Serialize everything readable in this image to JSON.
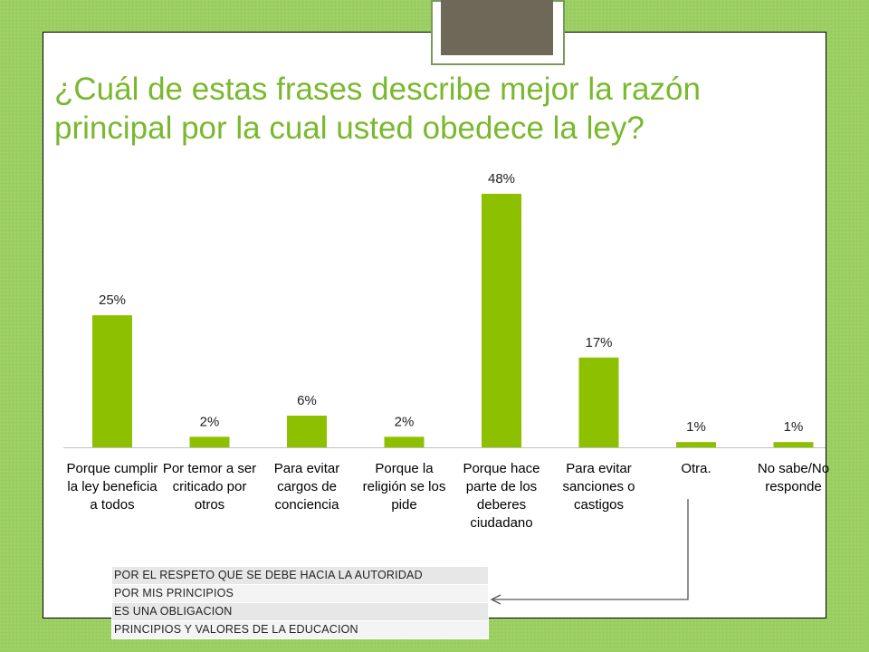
{
  "slide": {
    "title": "¿Cuál de estas frases describe mejor la razón principal por la cual usted obedece la ley?",
    "background_color": "#9ccf63",
    "title_color": "#7ab82e",
    "bar_color": "#8dc100"
  },
  "chart_data": {
    "type": "bar",
    "title": "",
    "xlabel": "",
    "ylabel": "",
    "categories": [
      "Porque cumplir la ley beneficia a todos",
      "Por temor a ser criticado por otros",
      "Para evitar cargos de conciencia",
      "Porque la religión se los pide",
      "Porque hace parte de los deberes ciudadano",
      "Para evitar sanciones o castigos",
      "Otra.",
      "No sabe/No responde"
    ],
    "values": [
      25,
      2,
      6,
      2,
      48,
      17,
      1,
      1
    ],
    "data_labels": [
      "25%",
      "2%",
      "6%",
      "2%",
      "48%",
      "17%",
      "1%",
      "1%"
    ],
    "unit": "%",
    "ylim": [
      0,
      48
    ],
    "grid": false,
    "legend": "none"
  },
  "other_responses": [
    "POR EL RESPETO QUE SE DEBE HACIA LA AUTORIDAD",
    "POR MIS PRINCIPIOS",
    "ES UNA OBLIGACION",
    "PRINCIPIOS Y VALORES DE LA EDUCACION"
  ]
}
